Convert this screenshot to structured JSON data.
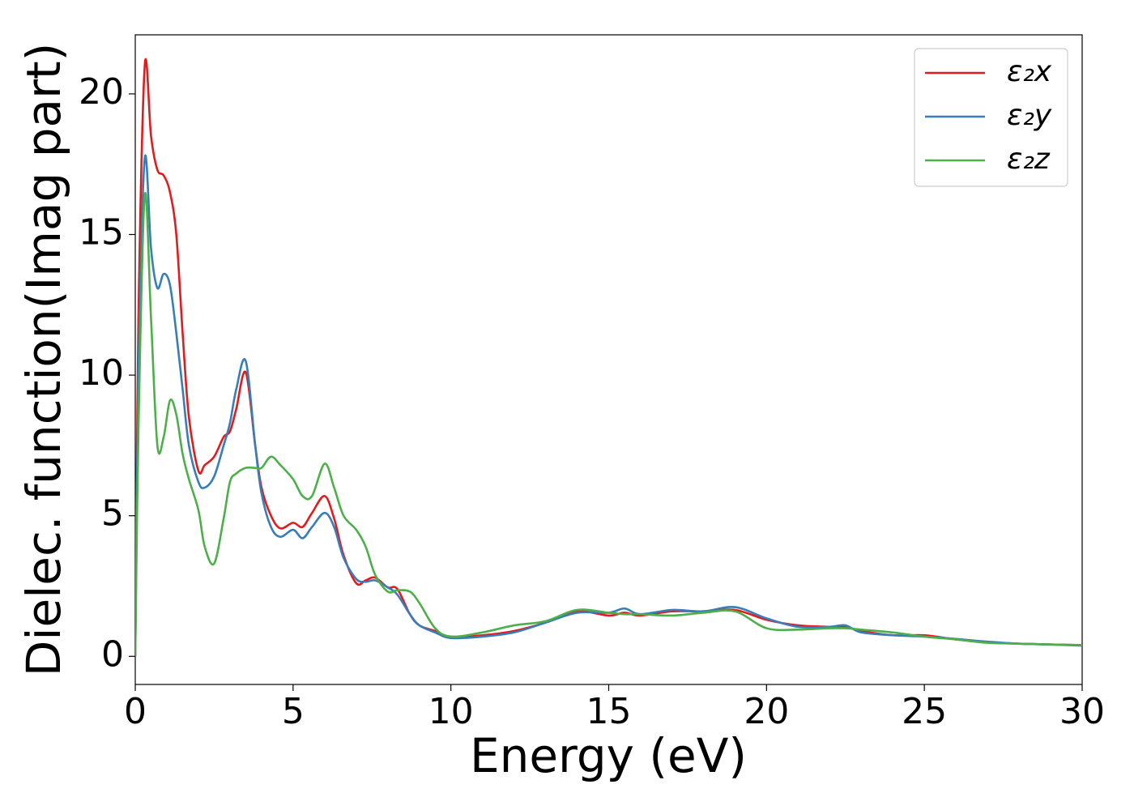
{
  "chart_data": {
    "type": "line",
    "xlabel": "Energy (eV)",
    "ylabel": "Dielec. function(Imag part)",
    "x": [
      0,
      0.1,
      0.3,
      0.5,
      0.7,
      0.9,
      1.1,
      1.3,
      1.5,
      1.7,
      2.0,
      2.2,
      2.5,
      2.8,
      3.0,
      3.2,
      3.5,
      3.8,
      4.0,
      4.3,
      4.6,
      5.0,
      5.3,
      5.6,
      6.0,
      6.3,
      6.6,
      7.0,
      7.3,
      7.6,
      8.0,
      8.3,
      8.7,
      9.0,
      9.5,
      10,
      11,
      12,
      13,
      14,
      15,
      15.5,
      16,
      17,
      18,
      19,
      20,
      21,
      22,
      22.5,
      23,
      24,
      25,
      26,
      27,
      28,
      29,
      30
    ],
    "series": [
      {
        "name": "ε₂x",
        "color": "#e41a1c",
        "values": [
          0,
          12,
          21,
          18.5,
          17.3,
          17.1,
          16.5,
          15,
          11.5,
          8.5,
          6.6,
          6.8,
          7.1,
          7.8,
          8.0,
          8.8,
          10.1,
          7.5,
          6.0,
          5.0,
          4.55,
          4.75,
          4.6,
          5.1,
          5.7,
          4.9,
          3.6,
          2.6,
          2.7,
          2.8,
          2.45,
          2.4,
          1.5,
          1.1,
          0.9,
          0.7,
          0.75,
          0.9,
          1.2,
          1.6,
          1.45,
          1.55,
          1.45,
          1.6,
          1.6,
          1.65,
          1.3,
          1.1,
          1.05,
          1.05,
          0.9,
          0.75,
          0.75,
          0.6,
          0.5,
          0.45,
          0.42,
          0.4
        ]
      },
      {
        "name": "ε₂y",
        "color": "#377eb8",
        "values": [
          0,
          10,
          17.7,
          14.5,
          13.1,
          13.6,
          13.2,
          11.5,
          9.5,
          7.5,
          6.2,
          6.0,
          6.4,
          7.5,
          8.3,
          9.5,
          10.5,
          7.5,
          5.8,
          4.6,
          4.25,
          4.5,
          4.2,
          4.6,
          5.1,
          4.6,
          3.5,
          2.75,
          2.65,
          2.7,
          2.45,
          2.2,
          1.5,
          1.1,
          0.85,
          0.65,
          0.7,
          0.85,
          1.2,
          1.55,
          1.55,
          1.7,
          1.5,
          1.65,
          1.6,
          1.75,
          1.35,
          1.05,
          1.05,
          1.1,
          0.85,
          0.75,
          0.7,
          0.62,
          0.52,
          0.45,
          0.42,
          0.38
        ]
      },
      {
        "name": "ε₂z",
        "color": "#4daf4a",
        "values": [
          0,
          8,
          16.4,
          12,
          7.5,
          7.8,
          9.1,
          8.6,
          7.2,
          6.3,
          5.2,
          3.9,
          3.3,
          4.9,
          6.2,
          6.5,
          6.7,
          6.7,
          6.7,
          7.1,
          6.8,
          6.3,
          5.7,
          5.7,
          6.85,
          6.0,
          5.0,
          4.5,
          3.9,
          2.9,
          2.3,
          2.35,
          2.3,
          1.9,
          1.0,
          0.7,
          0.85,
          1.1,
          1.25,
          1.65,
          1.55,
          1.5,
          1.5,
          1.45,
          1.55,
          1.6,
          1.0,
          0.95,
          1.0,
          1.0,
          0.95,
          0.85,
          0.7,
          0.6,
          0.48,
          0.45,
          0.42,
          0.4
        ]
      }
    ],
    "xlim": [
      0,
      30
    ],
    "xticks": [
      0,
      5,
      10,
      15,
      20,
      25,
      30
    ],
    "ylim": [
      -1,
      22.1
    ],
    "yticks": [
      0,
      5,
      10,
      15,
      20
    ],
    "grid": false,
    "legend": "upper right"
  }
}
